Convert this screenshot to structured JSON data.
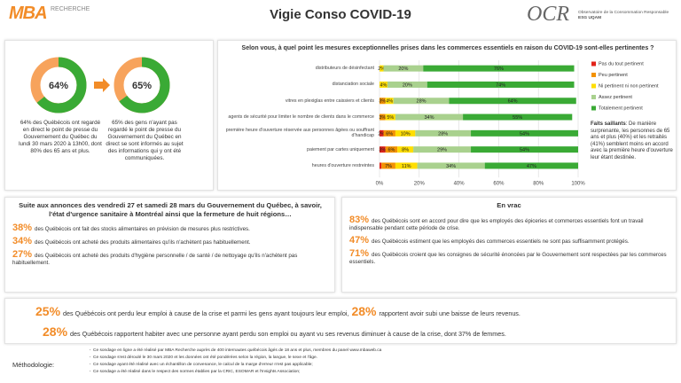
{
  "header": {
    "brand": "MBA",
    "brand_sub": "RECHERCHE",
    "title": "Vigie Conso COVID-19",
    "org": "OCR",
    "org_name": "Observatoire de la Consommation Responsable",
    "org_sub": "ESG UQAM"
  },
  "donuts": [
    {
      "value": 64,
      "value_label": "64%",
      "text": "64% des Québécois ont regardé en direct le point de presse du Gouvernement du Québec du lundi 30 mars 2020 à 13h00, dont 80% des 65 ans et plus."
    },
    {
      "value": 65,
      "value_label": "65%",
      "text": "65% des gens n'ayant pas regardé le point de presse du Gouvernement du Québec en direct se sont informés au sujet des informations qui y ont été communiquées."
    }
  ],
  "chart_data": {
    "type": "stacked-barh",
    "title": "Selon vous, à quel point les mesures exceptionnelles prises dans les commerces essentiels en raison du COVID-19 sont-elles pertinentes ?",
    "categories": [
      "distributeurs de désinfectant",
      "distanciation sociale",
      "vitres en plexiglas entre caissiers et clients",
      "agents de sécurité pour limiter le nombre de clients dans le commerce",
      "première heure d'ouverture réservée aux personnes âgées ou souffrant d'handicap",
      "paiement par cartes uniquement",
      "heures d'ouverture restreintes"
    ],
    "series": [
      {
        "name": "Pas du tout pertinent",
        "color": "#e2231a",
        "values": [
          null,
          null,
          null,
          null,
          2,
          3,
          1
        ],
        "value_labels": [
          null,
          null,
          null,
          null,
          "2%",
          "3%",
          null
        ]
      },
      {
        "name": "Peu pertinent",
        "color": "#f39200",
        "values": [
          null,
          null,
          3,
          3,
          6,
          6,
          7
        ],
        "value_labels": [
          null,
          null,
          "3%",
          "3%",
          "6%",
          "6%",
          "7%"
        ]
      },
      {
        "name": "Ni pertinent ni non pertinent",
        "color": "#ffde00",
        "values": [
          2,
          4,
          4,
          5,
          10,
          8,
          11
        ],
        "value_labels": [
          "2%",
          "4%",
          "4%",
          "5%",
          "10%",
          "8%",
          "11%"
        ]
      },
      {
        "name": "Assez pertinent",
        "color": "#a9d18e",
        "values": [
          20,
          20,
          28,
          34,
          28,
          29,
          34
        ],
        "value_labels": [
          "20%",
          "20%",
          "28%",
          "34%",
          "28%",
          "29%",
          "34%"
        ]
      },
      {
        "name": "Totalement pertinent",
        "color": "#3aaa35",
        "values": [
          76,
          74,
          64,
          55,
          54,
          54,
          47
        ],
        "value_labels": [
          "76%",
          "74%",
          "64%",
          "55%",
          "54%",
          "54%",
          "47%"
        ]
      }
    ],
    "xlim": [
      0,
      100
    ],
    "xticks": [
      {
        "value": 0,
        "label": "0%"
      },
      {
        "value": 20,
        "label": "20%"
      },
      {
        "value": 40,
        "label": "40%"
      },
      {
        "value": 60,
        "label": "60%"
      },
      {
        "value": 80,
        "label": "80%"
      },
      {
        "value": 100,
        "label": "100%"
      }
    ],
    "grid": true
  },
  "highlights": {
    "title": "Faits saillants",
    "text": ": De manière surprenante, les personnes de 65 ans et plus (40%) et les retraités (41%) semblent moins en accord avec la première heure d'ouverture leur étant destinée."
  },
  "announcements": {
    "title": "Suite aux annonces des vendredi 27 et samedi 28 mars du Gouvernement du Québec, à savoir, l'état d'urgence sanitaire à Montréal ainsi que la fermeture de huit régions…",
    "items": [
      {
        "stat": "38%",
        "text": "des Québécois ont fait des stocks alimentaires en prévision de mesures plus restrictives."
      },
      {
        "stat": "34%",
        "text": "des Québécois ont acheté des produits alimentaires qu'ils n'achètent pas habituellement."
      },
      {
        "stat": "27%",
        "text": "des Québécois ont acheté des produits d'hygiène personnelle / de santé / de nettoyage qu'ils n'achètent pas habituellement."
      }
    ]
  },
  "misc": {
    "title": "En vrac",
    "items": [
      {
        "stat": "83%",
        "text": "des Québécois sont en accord pour dire que les employés des épiceries et commerces essentiels font un travail indispensable pendant cette période de crise."
      },
      {
        "stat": "47%",
        "text": "des Québécois estiment que les employés des commerces essentiels ne sont pas suffisamment protégés."
      },
      {
        "stat": "71%",
        "text": "des Québécois croient que les consignes de sécurité énoncées par le Gouvernement sont respectées par les commerces essentiels."
      }
    ]
  },
  "employment": {
    "lines": [
      {
        "stat": "25%",
        "text": "des Québécois ont perdu leur emploi à cause de la crise et parmi les gens ayant toujours leur emploi,",
        "stat2": "28%",
        "text2": "rapportent avoir subi une baisse de leurs revenus."
      },
      {
        "stat": "28%",
        "text": "des Québécois rapportent habiter avec une personne ayant perdu son emploi ou ayant vu ses revenus diminuer à cause de la crise, dont 37% de femmes."
      }
    ]
  },
  "methodology": {
    "title": "Méthodologie:",
    "items": [
      "Ce sondage en ligne a été réalisé par MBA Recherche auprès de 400 internautes québécois âgés de 18 ans et plus, membres du panel www.mbaweb.ca",
      "Ce sondage s'est déroulé le 30 mars 2020 et les données ont été pondérées selon la région, la langue, le sexe et l'âge.",
      "Ce sondage ayant été réalisé avec un échantillon de convenance, le calcul de la marge d'erreur n'est pas applicable;",
      "Ce sondage a été réalisé dans le respect des normes établies par la CRIC, ESOMAR et l'Insights Association;"
    ]
  }
}
